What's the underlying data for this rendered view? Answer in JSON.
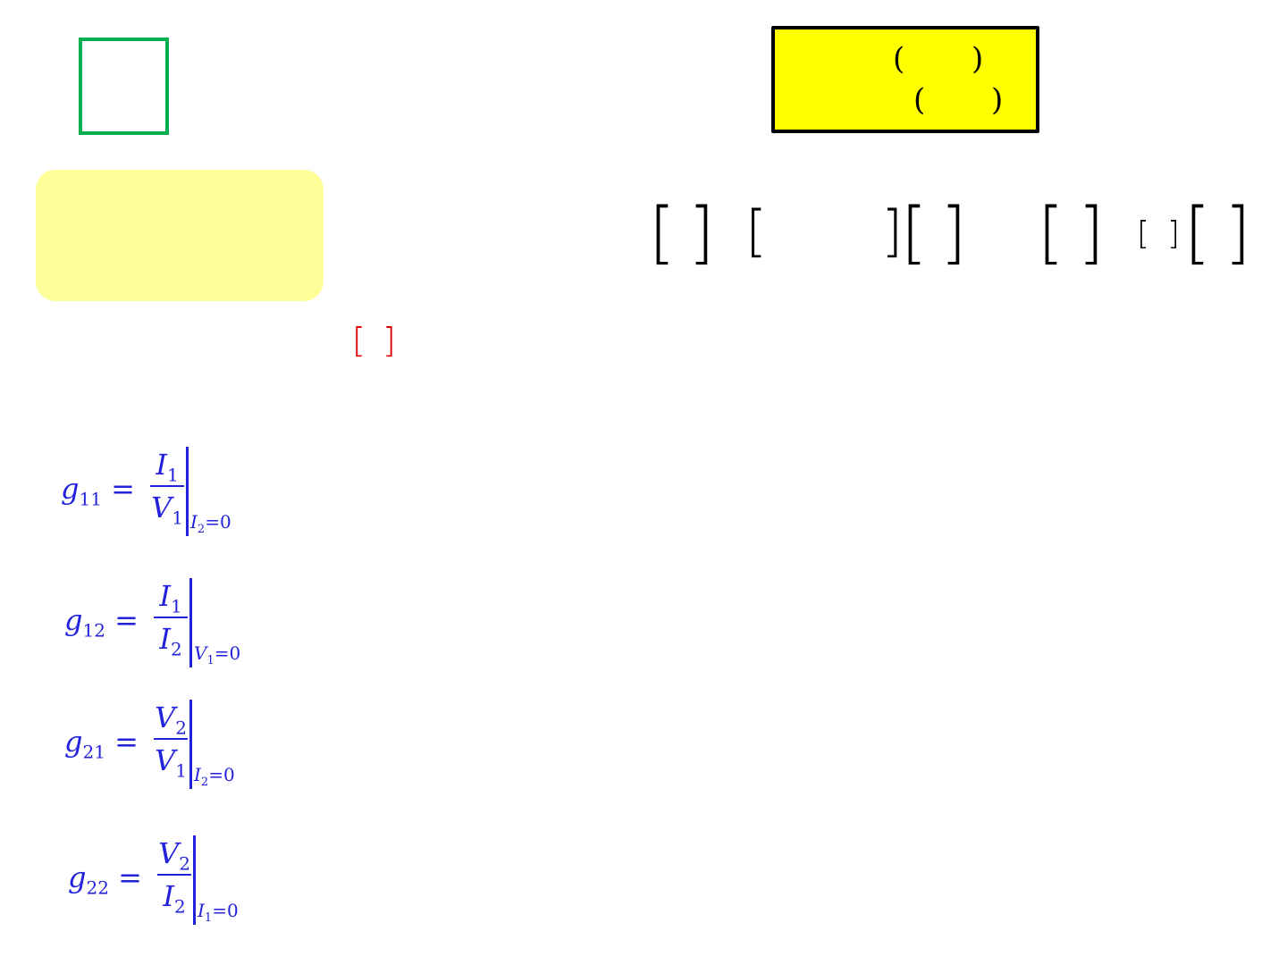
{
  "colors": {
    "green_box": "#00b050",
    "note_box": "#ffff99",
    "highlight_box": "#ffff00",
    "formula": "#2222dd",
    "red_bracket": "#e00000"
  },
  "highlight_box": {
    "open1": "(",
    "close1": ")",
    "open2": "(",
    "close2": ")"
  },
  "matrix_eq": {
    "b1": "[",
    "b2": "]",
    "b3": "[",
    "b4": "]",
    "b5": "[",
    "b6": "]",
    "b7": "[",
    "b8": "]",
    "b9": "[",
    "b10": "]",
    "b11": "[",
    "b12": "]"
  },
  "red_brackets": {
    "open": "[",
    "close": "]"
  },
  "formulas": [
    {
      "lhs": "g",
      "lhs_sub": "11",
      "num": "I",
      "num_sub": "1",
      "den": "V",
      "den_sub": "1",
      "cond": "I",
      "cond_sub": "2",
      "cond_rest": "=0"
    },
    {
      "lhs": "g",
      "lhs_sub": "12",
      "num": "I",
      "num_sub": "1",
      "den": "I",
      "den_sub": "2",
      "cond": "V",
      "cond_sub": "1",
      "cond_rest": "=0"
    },
    {
      "lhs": "g",
      "lhs_sub": "21",
      "num": "V",
      "num_sub": "2",
      "den": "V",
      "den_sub": "1",
      "cond": "I",
      "cond_sub": "2",
      "cond_rest": "=0"
    },
    {
      "lhs": "g",
      "lhs_sub": "22",
      "num": "V",
      "num_sub": "2",
      "den": "I",
      "den_sub": "2",
      "cond": "I",
      "cond_sub": "1",
      "cond_rest": "=0"
    }
  ]
}
